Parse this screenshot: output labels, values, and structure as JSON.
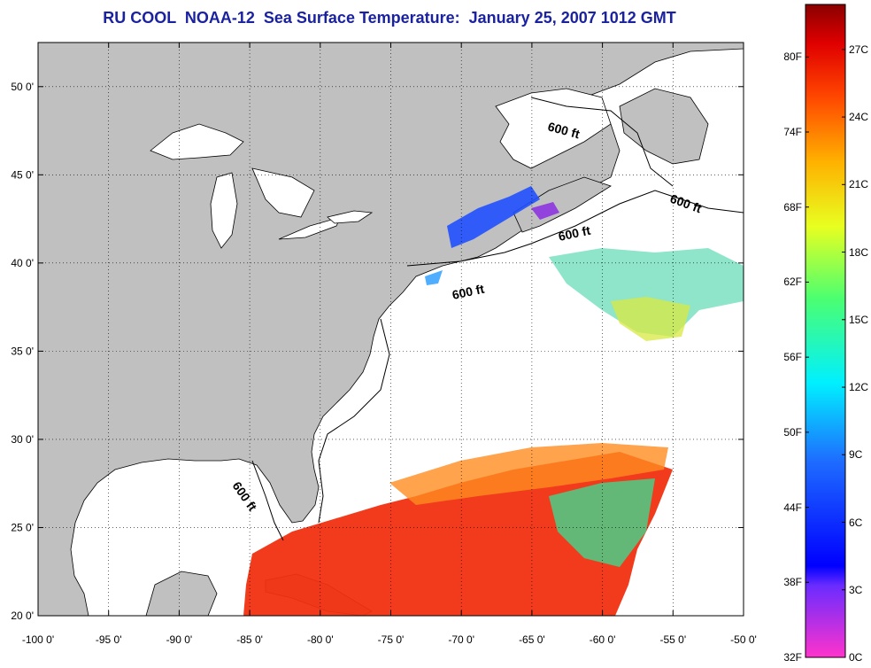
{
  "title": "RU COOL  NOAA-12  Sea Surface Temperature:  January 25, 2007 1012 GMT",
  "map": {
    "lon_ticks": [
      "-100 0'",
      "-95 0'",
      "-90 0'",
      "-85 0'",
      "-80 0'",
      "-75 0'",
      "-70 0'",
      "-65 0'",
      "-60 0'",
      "-55 0'",
      "-50 0'"
    ],
    "lat_ticks": [
      "50 0'",
      "45 0'",
      "40 0'",
      "35 0'",
      "30 0'",
      "25 0'",
      "20 0'"
    ],
    "lon_range": [
      -100,
      -50
    ],
    "lat_range": [
      20,
      52.5
    ],
    "land_color": "#c0c0c0",
    "ocean_color": "#ffffff",
    "grid": "dotted",
    "contour_labels": [
      "600 ft",
      "600 ft",
      "600 ft",
      "600 ft",
      "600 ft"
    ]
  },
  "colorbar": {
    "fahrenheit_labels": [
      "80F",
      "74F",
      "68F",
      "62F",
      "56F",
      "50F",
      "44F",
      "38F",
      "32F"
    ],
    "celsius_labels": [
      "27C",
      "24C",
      "21C",
      "18C",
      "15C",
      "12C",
      "9C",
      "6C",
      "3C",
      "0C"
    ],
    "range_c": [
      0,
      29
    ]
  }
}
